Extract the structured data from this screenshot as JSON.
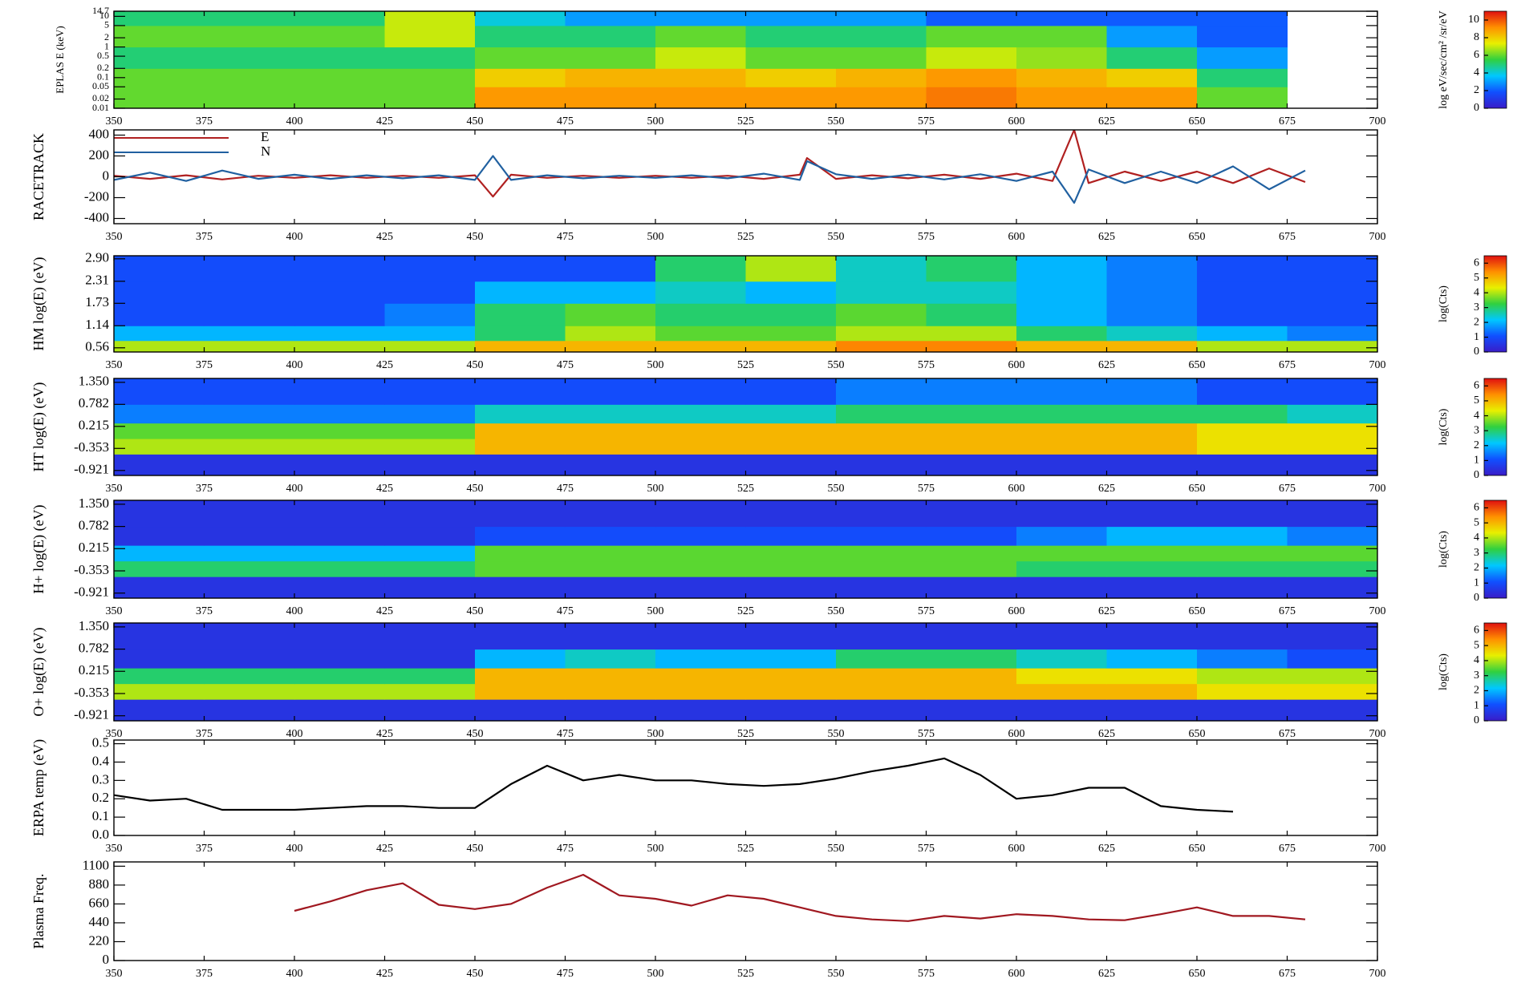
{
  "chart_data": [
    {
      "type": "heatmap",
      "ylabel": "EPLAS E (keV)",
      "ylog": true,
      "xlim": [
        350,
        700
      ],
      "xticks": [
        350,
        375,
        400,
        425,
        450,
        475,
        500,
        525,
        550,
        575,
        600,
        625,
        650,
        675,
        700
      ],
      "ylim": [
        0.01,
        14.7
      ],
      "yticks": [
        0.01,
        0.02,
        0.05,
        0.1,
        0.2,
        0.5,
        1,
        2,
        5,
        10,
        14.7
      ],
      "xbins": [
        350,
        375,
        400,
        425,
        450,
        475,
        500,
        525,
        550,
        575,
        600,
        625,
        650,
        675,
        700
      ],
      "ybins": [
        0.01,
        0.05,
        0.2,
        1,
        5,
        14.7
      ],
      "z": [
        [
          6,
          6,
          6,
          6,
          9,
          9,
          9,
          9,
          9,
          9.5,
          9,
          9,
          6,
          null
        ],
        [
          6,
          6,
          6,
          6,
          8,
          8.5,
          8.5,
          8,
          8.5,
          9,
          8.5,
          8,
          5,
          null
        ],
        [
          5,
          5,
          5,
          5,
          6,
          6,
          7,
          6,
          6,
          7,
          6.5,
          5,
          3,
          null
        ],
        [
          6,
          6,
          6,
          7,
          5,
          5,
          6,
          5,
          5,
          6,
          6,
          3,
          2,
          null
        ],
        [
          5,
          5,
          5,
          7,
          4,
          3,
          3,
          3,
          3,
          2,
          2,
          2,
          2,
          null
        ]
      ],
      "colormap": [
        "#3a1cc8",
        "#1050ff",
        "#00c8ff",
        "#30d040",
        "#e8f000",
        "#ff9000",
        "#e01010"
      ],
      "clim": [
        0,
        11
      ],
      "cticks": [
        0,
        2,
        4,
        6,
        8,
        10
      ],
      "clabel": "log eV/sec/cm² /sr/eV"
    },
    {
      "type": "line",
      "ylabel": "RACETRACK",
      "legend": "upper left",
      "xlim": [
        350,
        700
      ],
      "xticks": [
        350,
        375,
        400,
        425,
        450,
        475,
        500,
        525,
        550,
        575,
        600,
        625,
        650,
        675,
        700
      ],
      "ylim": [
        -450,
        450
      ],
      "yticks": [
        -400,
        -200,
        0,
        200,
        400
      ],
      "x": [
        350,
        360,
        370,
        380,
        390,
        400,
        410,
        420,
        430,
        440,
        450,
        455,
        460,
        470,
        480,
        490,
        500,
        510,
        520,
        530,
        540,
        542,
        550,
        560,
        570,
        580,
        590,
        600,
        610,
        616,
        620,
        630,
        640,
        650,
        660,
        670,
        680
      ],
      "series": [
        {
          "name": "E",
          "color": "#b02020",
          "values": [
            10,
            -20,
            15,
            -25,
            10,
            -10,
            15,
            -10,
            10,
            -10,
            15,
            -190,
            20,
            -10,
            10,
            -10,
            10,
            -10,
            10,
            -20,
            20,
            180,
            -20,
            15,
            -15,
            20,
            -20,
            30,
            -40,
            450,
            -60,
            50,
            -40,
            50,
            -60,
            80,
            -50
          ]
        },
        {
          "name": "N",
          "color": "#2060a0",
          "values": [
            -30,
            40,
            -40,
            60,
            -20,
            20,
            -20,
            15,
            -15,
            15,
            -30,
            200,
            -30,
            15,
            -15,
            10,
            -10,
            15,
            -15,
            30,
            -30,
            150,
            25,
            -20,
            20,
            -25,
            25,
            -40,
            50,
            -250,
            70,
            -60,
            50,
            -60,
            100,
            -120,
            60
          ]
        }
      ]
    },
    {
      "type": "heatmap",
      "ylabel": "HM log(E) (eV)",
      "xlim": [
        350,
        700
      ],
      "xticks": [
        350,
        375,
        400,
        425,
        450,
        475,
        500,
        525,
        550,
        575,
        600,
        625,
        650,
        675,
        700
      ],
      "ylim": [
        0.45,
        2.98
      ],
      "yticks": [
        0.56,
        1.14,
        1.73,
        2.31,
        {
          "value": 2.9,
          "label": "2.90"
        }
      ],
      "xbins": [
        350,
        375,
        400,
        425,
        450,
        475,
        500,
        525,
        550,
        575,
        600,
        625,
        650,
        675,
        700
      ],
      "ybins": [
        0.45,
        0.75,
        1.14,
        1.73,
        2.31,
        2.98
      ],
      "z": [
        [
          4,
          4,
          4,
          4,
          5,
          5,
          5,
          5,
          5.5,
          5.5,
          5,
          5,
          4,
          4
        ],
        [
          2,
          2,
          2,
          2,
          3,
          4,
          3.5,
          3.5,
          4,
          4,
          3,
          2.5,
          2,
          1.5
        ],
        [
          1,
          1,
          1,
          1.5,
          3,
          3.5,
          3,
          3,
          3.5,
          3,
          2,
          1.5,
          1,
          1
        ],
        [
          1,
          1,
          1,
          1,
          2,
          2,
          2.5,
          2,
          2.5,
          2.5,
          2,
          1.5,
          1,
          1
        ],
        [
          1,
          1,
          1,
          1,
          1,
          1,
          3,
          4,
          2.5,
          3,
          2,
          1.5,
          1,
          1
        ]
      ],
      "colormap": [
        "#3a1cc8",
        "#1050ff",
        "#00c8ff",
        "#30d040",
        "#e8f000",
        "#ff9000",
        "#e01010"
      ],
      "clim": [
        0,
        6.5
      ],
      "cticks": [
        0,
        1,
        2,
        3,
        4,
        5,
        6
      ],
      "clabel": "log(Cts)"
    },
    {
      "type": "heatmap",
      "ylabel": "HT log(E) (eV)",
      "xlim": [
        350,
        700
      ],
      "xticks": [
        350,
        375,
        400,
        425,
        450,
        475,
        500,
        525,
        550,
        575,
        600,
        625,
        650,
        675,
        700
      ],
      "ylim": [
        -1.05,
        1.45
      ],
      "yticks": [
        -0.921,
        -0.353,
        0.215,
        0.782,
        {
          "value": 1.35,
          "label": "1.350"
        }
      ],
      "xbins": [
        350,
        375,
        400,
        425,
        450,
        475,
        500,
        525,
        550,
        575,
        600,
        625,
        650,
        675,
        700
      ],
      "ybins": [
        -1.05,
        -0.5,
        -0.1,
        0.3,
        0.782,
        1.45
      ],
      "z": [
        [
          0.5,
          0.5,
          0.5,
          0.5,
          0.5,
          0.5,
          0.5,
          0.5,
          0.5,
          0.5,
          0.5,
          0.5,
          0.5,
          0.5
        ],
        [
          4,
          4,
          4,
          4,
          5,
          5,
          5,
          5,
          5,
          5,
          5,
          5,
          4.5,
          4.5
        ],
        [
          3.5,
          3.5,
          3.5,
          3.5,
          5,
          5,
          5,
          5,
          5,
          5,
          5,
          5,
          4.5,
          4.5
        ],
        [
          1.5,
          1.5,
          1.5,
          1.5,
          2.5,
          2.5,
          2.5,
          2.5,
          3,
          3,
          3,
          3,
          3,
          2.5
        ],
        [
          1,
          1,
          1,
          1,
          1,
          1,
          1,
          1,
          1.5,
          1.5,
          1.5,
          1.5,
          1,
          1
        ]
      ],
      "colormap": [
        "#3a1cc8",
        "#1050ff",
        "#00c8ff",
        "#30d040",
        "#e8f000",
        "#ff9000",
        "#e01010"
      ],
      "clim": [
        0,
        6.5
      ],
      "cticks": [
        0,
        1,
        2,
        3,
        4,
        5,
        6
      ],
      "clabel": "log(Cts)"
    },
    {
      "type": "heatmap",
      "ylabel": "H+ log(E) (eV)",
      "xlim": [
        350,
        700
      ],
      "xticks": [
        350,
        375,
        400,
        425,
        450,
        475,
        500,
        525,
        550,
        575,
        600,
        625,
        650,
        675,
        700
      ],
      "ylim": [
        -1.05,
        1.45
      ],
      "yticks": [
        -0.921,
        -0.353,
        0.215,
        0.782,
        {
          "value": 1.35,
          "label": "1.350"
        }
      ],
      "xbins": [
        350,
        375,
        400,
        425,
        450,
        475,
        500,
        525,
        550,
        575,
        600,
        625,
        650,
        675,
        700
      ],
      "ybins": [
        -1.05,
        -0.5,
        -0.1,
        0.3,
        0.782,
        1.45
      ],
      "z": [
        [
          0.5,
          0.5,
          0.5,
          0.5,
          0.5,
          0.5,
          0.5,
          0.5,
          0.5,
          0.5,
          0.5,
          0.5,
          0.5,
          0.5
        ],
        [
          3,
          3,
          3,
          3,
          3.5,
          3.5,
          3.5,
          3.5,
          3.5,
          3.5,
          3,
          3,
          3,
          3
        ],
        [
          2,
          2,
          2,
          2,
          3.5,
          3.5,
          3.5,
          3.5,
          3.5,
          3.5,
          3.5,
          3.5,
          3.5,
          3.5
        ],
        [
          0.5,
          0.5,
          0.5,
          0.5,
          1,
          1,
          1,
          1,
          1,
          1,
          1.5,
          2,
          2,
          1.5
        ],
        [
          0.5,
          0.5,
          0.5,
          0.5,
          0.5,
          0.5,
          0.5,
          0.5,
          0.5,
          0.5,
          0.5,
          0.5,
          0.5,
          0.5
        ]
      ],
      "colormap": [
        "#3a1cc8",
        "#1050ff",
        "#00c8ff",
        "#30d040",
        "#e8f000",
        "#ff9000",
        "#e01010"
      ],
      "clim": [
        0,
        6.5
      ],
      "cticks": [
        0,
        1,
        2,
        3,
        4,
        5,
        6
      ],
      "clabel": "log(Cts)"
    },
    {
      "type": "heatmap",
      "ylabel": "O+ log(E) (eV)",
      "xlim": [
        350,
        700
      ],
      "xticks": [
        350,
        375,
        400,
        425,
        450,
        475,
        500,
        525,
        550,
        575,
        600,
        625,
        650,
        675,
        700
      ],
      "ylim": [
        -1.05,
        1.45
      ],
      "yticks": [
        -0.921,
        -0.353,
        0.215,
        0.782,
        {
          "value": 1.35,
          "label": "1.350"
        }
      ],
      "xbins": [
        350,
        375,
        400,
        425,
        450,
        475,
        500,
        525,
        550,
        575,
        600,
        625,
        650,
        675,
        700
      ],
      "ybins": [
        -1.05,
        -0.5,
        -0.1,
        0.3,
        0.782,
        1.45
      ],
      "z": [
        [
          0.5,
          0.5,
          0.5,
          0.5,
          0.5,
          0.5,
          0.5,
          0.5,
          0.5,
          0.5,
          0.5,
          0.5,
          0.5,
          0.5
        ],
        [
          4,
          4,
          4,
          4,
          5,
          5,
          5,
          5,
          5,
          5,
          5,
          5,
          4.5,
          4.5
        ],
        [
          3,
          3,
          3,
          3,
          5,
          5,
          5,
          5,
          5,
          5,
          4.5,
          4.5,
          4,
          4
        ],
        [
          0.5,
          0.5,
          0.5,
          0.5,
          2,
          2.5,
          2,
          2,
          3,
          3,
          2.5,
          2,
          1.5,
          1
        ],
        [
          0.5,
          0.5,
          0.5,
          0.5,
          0.5,
          0.5,
          0.5,
          0.5,
          0.5,
          0.5,
          0.5,
          0.5,
          0.5,
          0.5
        ]
      ],
      "colormap": [
        "#3a1cc8",
        "#1050ff",
        "#00c8ff",
        "#30d040",
        "#e8f000",
        "#ff9000",
        "#e01010"
      ],
      "clim": [
        0,
        6.5
      ],
      "cticks": [
        0,
        1,
        2,
        3,
        4,
        5,
        6
      ],
      "clabel": "log(Cts)"
    },
    {
      "type": "line",
      "ylabel": "ERPA temp (eV)",
      "xlim": [
        350,
        700
      ],
      "xticks": [
        350,
        375,
        400,
        425,
        450,
        475,
        500,
        525,
        550,
        575,
        600,
        625,
        650,
        675,
        700
      ],
      "ylim": [
        0,
        0.52
      ],
      "yticks": [
        {
          "value": 0,
          "label": "0.0"
        },
        0.1,
        0.2,
        0.3,
        0.4,
        0.5
      ],
      "x": [
        350,
        360,
        370,
        380,
        390,
        400,
        410,
        420,
        430,
        440,
        450,
        460,
        470,
        480,
        490,
        500,
        510,
        520,
        530,
        540,
        550,
        560,
        570,
        580,
        590,
        600,
        610,
        620,
        630,
        640,
        650,
        660
      ],
      "color": "#000000",
      "values": [
        0.22,
        0.19,
        0.2,
        0.14,
        0.14,
        0.14,
        0.15,
        0.16,
        0.16,
        0.15,
        0.15,
        0.28,
        0.38,
        0.3,
        0.33,
        0.3,
        0.3,
        0.28,
        0.27,
        0.28,
        0.31,
        0.35,
        0.38,
        0.42,
        0.33,
        0.2,
        0.22,
        0.26,
        0.26,
        0.16,
        0.14,
        0.13
      ]
    },
    {
      "type": "line",
      "ylabel": "Plasma Freq.",
      "xlim": [
        350,
        700
      ],
      "xticks": [
        350,
        375,
        400,
        425,
        450,
        475,
        500,
        525,
        550,
        575,
        600,
        625,
        650,
        675,
        700
      ],
      "ylim": [
        0,
        1150
      ],
      "yticks": [
        0,
        220,
        440,
        660,
        880,
        1100
      ],
      "x": [
        400,
        410,
        420,
        430,
        440,
        450,
        460,
        470,
        480,
        490,
        500,
        510,
        520,
        530,
        540,
        550,
        560,
        570,
        580,
        590,
        600,
        610,
        620,
        630,
        640,
        650,
        660,
        670,
        680
      ],
      "color": "#a01820",
      "values": [
        580,
        690,
        820,
        900,
        650,
        600,
        660,
        850,
        1000,
        760,
        720,
        640,
        760,
        720,
        620,
        520,
        480,
        460,
        520,
        490,
        540,
        520,
        480,
        470,
        540,
        620,
        520,
        520,
        480
      ]
    }
  ]
}
